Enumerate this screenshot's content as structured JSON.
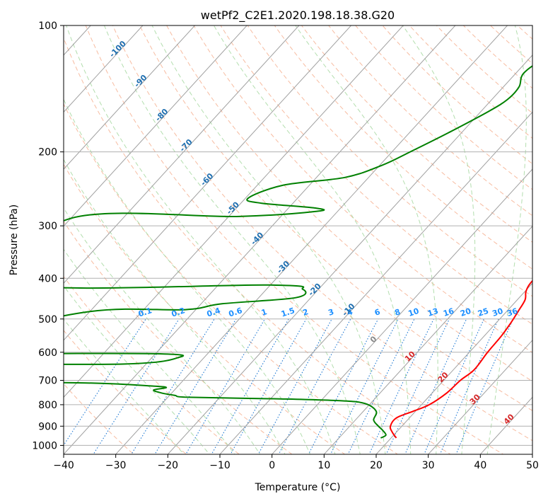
{
  "chart_data": {
    "type": "skew-t",
    "title": "wetPf2_C2E1.2020.198.18.38.G20",
    "xlabel": "Temperature (°C)",
    "ylabel": "Pressure (hPa)",
    "xlim": [
      -40,
      50
    ],
    "ylim": [
      1050,
      100
    ],
    "y_scale": "log",
    "grid": true,
    "x_ticks": [
      -40,
      -30,
      -20,
      -10,
      0,
      10,
      20,
      30,
      40,
      50
    ],
    "x_tick_labels": [
      "−40",
      "−30",
      "−20",
      "−10",
      "0",
      "10",
      "20",
      "30",
      "40",
      "50"
    ],
    "y_ticks": [
      100,
      200,
      300,
      400,
      500,
      600,
      700,
      800,
      900,
      1000
    ],
    "y_tick_labels": [
      "100",
      "200",
      "300",
      "400",
      "500",
      "600",
      "700",
      "800",
      "900",
      "1000"
    ],
    "colors": {
      "temperature": "#ff0000",
      "dewpoint": "#008000",
      "isotherm": "#a0a0a0",
      "dry_adiabat": "#f4a582",
      "moist_adiabat": "#a6d8a0",
      "mixing_ratio": "#1e78d2",
      "mixing_ratio_label": "#1e90ff",
      "isotherm_label": "#1f6fb0",
      "wetbulb_label": "#d62728"
    },
    "mixing_ratio_labels": [
      "0.1",
      "0.2",
      "0.4",
      "0.6",
      "1",
      "1.5",
      "2",
      "3",
      "4",
      "6",
      "8",
      "10",
      "13",
      "16",
      "20",
      "25",
      "30",
      "36"
    ],
    "mixing_ratio_values": [
      0.1,
      0.2,
      0.4,
      0.6,
      1,
      1.5,
      2,
      3,
      4,
      6,
      8,
      10,
      13,
      16,
      20,
      25,
      30,
      36
    ],
    "isotherm_labels": [
      {
        "t": -100,
        "p": 115,
        "text": "-100"
      },
      {
        "t": -90,
        "p": 137,
        "text": "-90"
      },
      {
        "t": -80,
        "p": 165,
        "text": "-80"
      },
      {
        "t": -70,
        "p": 195,
        "text": "-70"
      },
      {
        "t": -60,
        "p": 235,
        "text": "-60"
      },
      {
        "t": -50,
        "p": 275,
        "text": "-50"
      },
      {
        "t": -40,
        "p": 325,
        "text": "-40"
      },
      {
        "t": -30,
        "p": 380,
        "text": "-30"
      },
      {
        "t": -20,
        "p": 430,
        "text": "-20"
      },
      {
        "t": -10,
        "p": 480,
        "text": "-10"
      }
    ],
    "wetbulb_labels": [
      {
        "t": 0,
        "p": 565,
        "text": "0"
      },
      {
        "t": 10,
        "p": 620,
        "text": "10"
      },
      {
        "t": 20,
        "p": 695,
        "text": "20"
      },
      {
        "t": 30,
        "p": 785,
        "text": "30"
      },
      {
        "t": 40,
        "p": 875,
        "text": "40"
      }
    ],
    "series": [
      {
        "type": "temperature",
        "points": [
          [
            8,
            100
          ],
          [
            8.2,
            110
          ],
          [
            8,
            120
          ],
          [
            6.5,
            130
          ],
          [
            3.5,
            140
          ],
          [
            3,
            150
          ],
          [
            5,
            160
          ],
          [
            8.5,
            180
          ],
          [
            12.5,
            200
          ],
          [
            16.2,
            220
          ],
          [
            19.7,
            240
          ],
          [
            23,
            260
          ],
          [
            25.2,
            280
          ],
          [
            26.5,
            300
          ],
          [
            28.5,
            320
          ],
          [
            28,
            340
          ],
          [
            25,
            355
          ],
          [
            22,
            370
          ],
          [
            20,
            390
          ],
          [
            19.6,
            410
          ],
          [
            20.2,
            430
          ],
          [
            21.5,
            450
          ],
          [
            22.2,
            480
          ],
          [
            22.8,
            510
          ],
          [
            23.3,
            550
          ],
          [
            23.5,
            600
          ],
          [
            24,
            660
          ],
          [
            23.2,
            700
          ],
          [
            22.8,
            750
          ],
          [
            21.5,
            800
          ],
          [
            19.5,
            830
          ],
          [
            17.5,
            860
          ],
          [
            17.8,
            900
          ],
          [
            19.2,
            930
          ],
          [
            21,
            960
          ]
        ]
      },
      {
        "type": "dewpoint",
        "points": [
          [
            -8,
            100
          ],
          [
            -12.5,
            110
          ],
          [
            -17,
            120
          ],
          [
            -18.5,
            130
          ],
          [
            -17,
            140
          ],
          [
            -17,
            150
          ],
          [
            -18.5,
            160
          ],
          [
            -22.5,
            180
          ],
          [
            -26.5,
            200
          ],
          [
            -29.5,
            215
          ],
          [
            -34.5,
            230
          ],
          [
            -45,
            240
          ],
          [
            -49.5,
            258
          ],
          [
            -46,
            265
          ],
          [
            -35,
            272
          ],
          [
            -34,
            277
          ],
          [
            -48,
            285
          ],
          [
            -80,
            288
          ],
          [
            -80,
            410
          ],
          [
            -30,
            415
          ],
          [
            -23,
            425
          ],
          [
            -23,
            445
          ],
          [
            -36,
            460
          ],
          [
            -42,
            475
          ],
          [
            -60,
            480
          ],
          [
            -80,
            560
          ],
          [
            -80,
            600
          ],
          [
            -40,
            605
          ],
          [
            -35,
            618
          ],
          [
            -44,
            640
          ],
          [
            -80,
            645
          ],
          [
            -80,
            700
          ],
          [
            -48,
            710
          ],
          [
            -35,
            722
          ],
          [
            -32,
            728
          ],
          [
            -34,
            738
          ],
          [
            -32,
            750
          ],
          [
            -29,
            760
          ],
          [
            -26,
            768
          ],
          [
            -8,
            775
          ],
          [
            4,
            783
          ],
          [
            9,
            795
          ],
          [
            12.5,
            830
          ],
          [
            13.5,
            870
          ],
          [
            15.5,
            900
          ],
          [
            17,
            920
          ],
          [
            18.5,
            945
          ],
          [
            18,
            960
          ]
        ]
      }
    ]
  }
}
